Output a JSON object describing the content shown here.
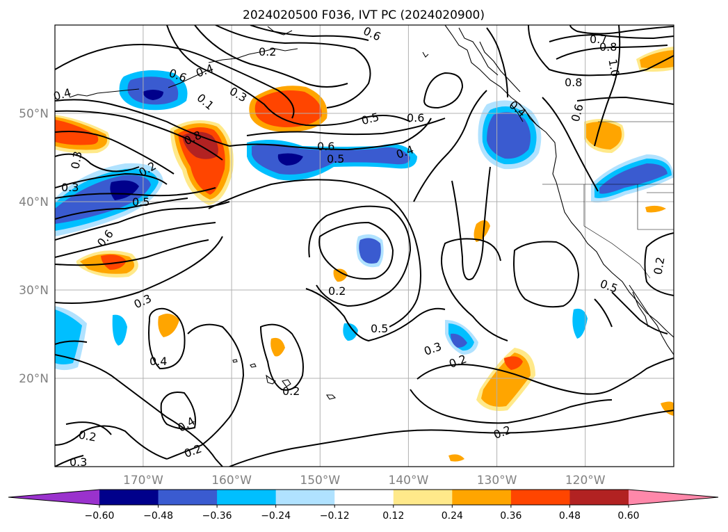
{
  "map": {
    "title": "2024020500 F036, IVT PC (2024020900)",
    "lat_labels": [
      "50°N",
      "40°N",
      "30°N",
      "20°N"
    ],
    "lon_labels": [
      "170°W",
      "160°W",
      "150°W",
      "140°W",
      "130°W",
      "120°W"
    ],
    "extent": {
      "lon": [
        -180,
        -110
      ],
      "lat": [
        10,
        60
      ]
    },
    "colorbar": {
      "ticks": [
        "−0.60",
        "−0.48",
        "−0.36",
        "−0.24",
        "−0.12",
        "0.12",
        "0.24",
        "0.36",
        "0.48",
        "0.60"
      ],
      "levels": [
        -0.6,
        -0.48,
        -0.36,
        -0.24,
        -0.12,
        0.12,
        0.24,
        0.36,
        0.48,
        0.6
      ],
      "colors": [
        "#9a32cd",
        "#00008b",
        "#3a5bd0",
        "#00bfff",
        "#b0e2ff",
        "#ffffff",
        "#ffe98a",
        "#ffa500",
        "#ff4500",
        "#b22222",
        "#ff88aa"
      ],
      "extend": "both"
    },
    "contour_labels": [
      "0.6",
      "0.2",
      "0.4",
      "0.6",
      "0.4",
      "0.1",
      "0.3",
      "0.8",
      "0.3",
      "0.2",
      "0.3",
      "0.5",
      "0.6",
      "0.5",
      "0.6",
      "0.5",
      "0.4",
      "0.6",
      "0.8",
      "0.7",
      "0.8",
      "1.0",
      "0.6",
      "0.4",
      "0.3",
      "0.4",
      "0.2",
      "0.2",
      "0.5",
      "0.3",
      "0.2",
      "0.2",
      "0.5",
      "0.2",
      "0.2",
      "0.4",
      "0.2",
      "0.3"
    ]
  }
}
